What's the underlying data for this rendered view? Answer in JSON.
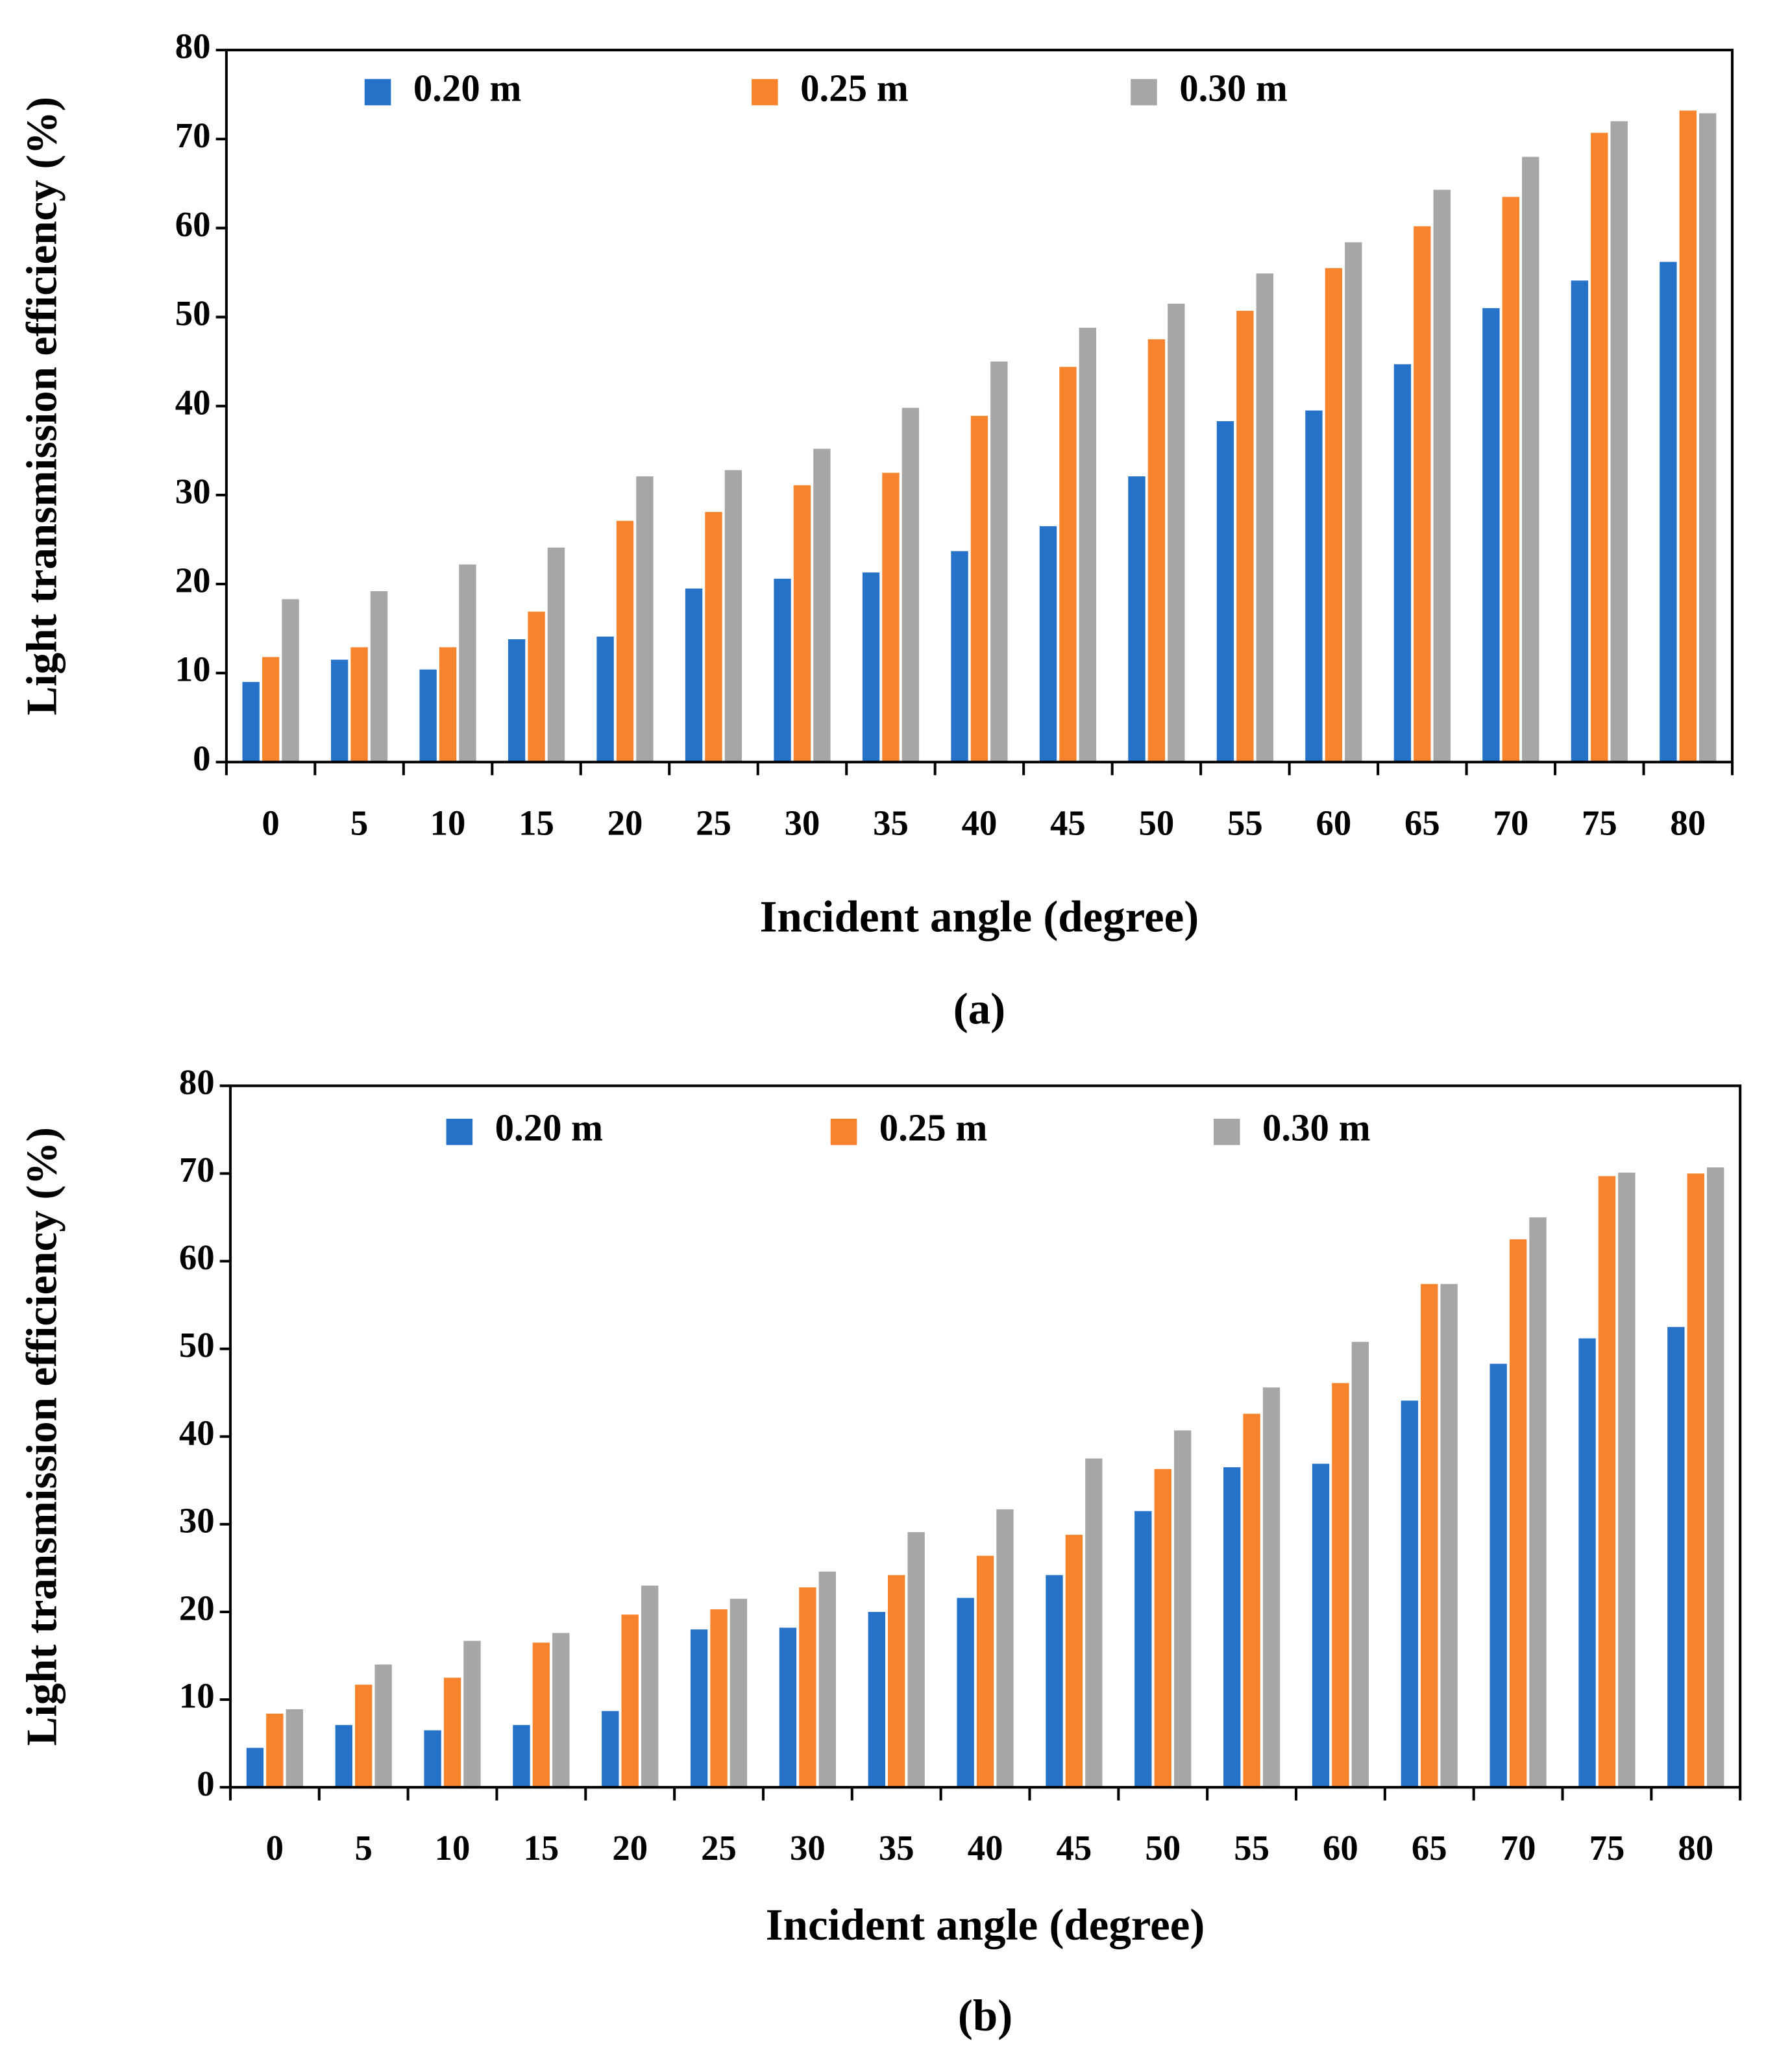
{
  "chart_data": [
    {
      "type": "bar",
      "caption": "(a)",
      "x_label": "Incident angle (degree)",
      "y_label": "Light transmission efficiency (%)",
      "categories": [
        "0",
        "5",
        "10",
        "15",
        "20",
        "25",
        "30",
        "35",
        "40",
        "45",
        "50",
        "55",
        "60",
        "65",
        "70",
        "75",
        "80"
      ],
      "series": [
        {
          "name": "0.20 m",
          "color": "#2672c8",
          "values": [
            9,
            11.5,
            10.4,
            13.8,
            14.1,
            19.5,
            20.6,
            21.3,
            23.7,
            26.5,
            32.1,
            38.3,
            39.5,
            44.7,
            51,
            54.1,
            56.2
          ]
        },
        {
          "name": "0.25 m",
          "color": "#f7832c",
          "values": [
            11.8,
            12.9,
            12.9,
            16.9,
            27.1,
            28.1,
            31.1,
            32.5,
            38.9,
            44.4,
            47.5,
            50.7,
            55.5,
            60.2,
            63.5,
            70.7,
            73.2
          ]
        },
        {
          "name": "0.30 m",
          "color": "#a6a6a6",
          "values": [
            18.3,
            19.2,
            22.2,
            24.1,
            32.1,
            32.8,
            35.2,
            39.8,
            45,
            48.8,
            51.5,
            54.9,
            58.4,
            64.3,
            68,
            72,
            72.9
          ]
        }
      ],
      "ylim": [
        0,
        80
      ],
      "yticks": [
        0,
        10,
        20,
        30,
        40,
        50,
        60,
        70,
        80
      ]
    },
    {
      "type": "bar",
      "caption": "(b)",
      "x_label": "Incident angle (degree)",
      "y_label": "Light transmission efficiency (%)",
      "categories": [
        "0",
        "5",
        "10",
        "15",
        "20",
        "25",
        "30",
        "35",
        "40",
        "45",
        "50",
        "55",
        "60",
        "65",
        "70",
        "75",
        "80"
      ],
      "series": [
        {
          "name": "0.20 m",
          "color": "#2672c8",
          "values": [
            4.5,
            7.1,
            6.5,
            7.1,
            8.7,
            18,
            18.2,
            20,
            21.6,
            24.2,
            31.5,
            36.5,
            36.9,
            44.1,
            48.3,
            51.2,
            52.5
          ]
        },
        {
          "name": "0.25 m",
          "color": "#f7832c",
          "values": [
            8.4,
            11.7,
            12.5,
            16.5,
            19.7,
            20.3,
            22.8,
            24.2,
            26.4,
            28.8,
            36.3,
            42.6,
            46.1,
            57.4,
            62.5,
            69.7,
            70
          ]
        },
        {
          "name": "0.30 m",
          "color": "#a6a6a6",
          "values": [
            8.9,
            14,
            16.7,
            17.6,
            23,
            21.5,
            24.6,
            29.1,
            31.7,
            37.5,
            40.7,
            45.6,
            50.8,
            57.4,
            65,
            70.1,
            70.7
          ]
        }
      ],
      "ylim": [
        0,
        80
      ],
      "yticks": [
        0,
        10,
        20,
        30,
        40,
        50,
        60,
        70,
        80
      ]
    }
  ]
}
